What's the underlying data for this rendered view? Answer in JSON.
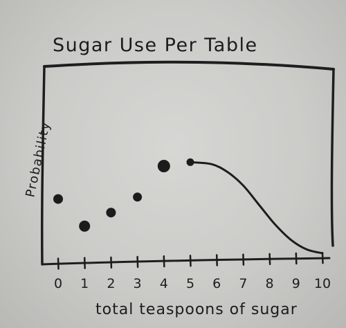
{
  "chart_data": {
    "type": "scatter",
    "title": "Sugar Use Per Table",
    "xlabel": "total teaspoons of sugar",
    "ylabel": "Probability",
    "x_ticks": [
      "0",
      "1",
      "2",
      "3",
      "4",
      "5",
      "6",
      "7",
      "8",
      "9",
      "10"
    ],
    "xlim": [
      0,
      10
    ],
    "ylim": [
      0,
      1
    ],
    "grid": false,
    "legend": "none",
    "points": [
      {
        "x": 0,
        "y": 0.33
      },
      {
        "x": 1,
        "y": 0.19
      },
      {
        "x": 2,
        "y": 0.26
      },
      {
        "x": 3,
        "y": 0.34
      },
      {
        "x": 4,
        "y": 0.5
      },
      {
        "x": 5,
        "y": 0.52
      }
    ],
    "tail_curve": {
      "x": [
        5,
        5.8,
        6.4,
        7.0,
        7.6,
        8.2,
        8.8,
        9.4,
        10
      ],
      "y": [
        0.52,
        0.51,
        0.47,
        0.4,
        0.3,
        0.2,
        0.12,
        0.07,
        0.05
      ]
    },
    "colors": {
      "ink": "#1c1c1c",
      "paper": "#d2d2cf"
    }
  }
}
